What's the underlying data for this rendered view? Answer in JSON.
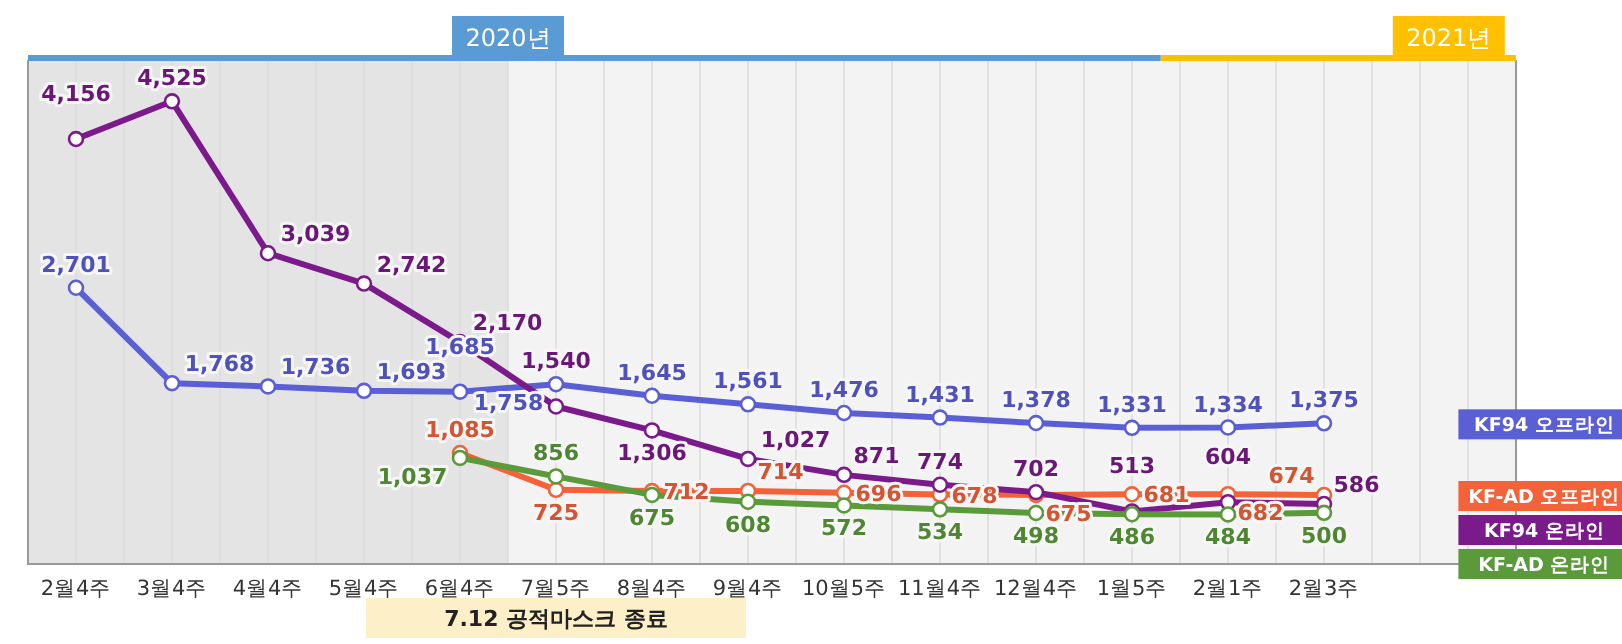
{
  "chart_data": {
    "type": "line",
    "categories": [
      "2월4주",
      "3월4주",
      "4월4주",
      "5월4주",
      "6월4주",
      "7월5주",
      "8월4주",
      "9월4주",
      "10월5주",
      "11월4주",
      "12월4주",
      "1월5주",
      "2월1주",
      "2월3주"
    ],
    "series": [
      {
        "name": "KF94 오프라인",
        "color": "#5b5fd6",
        "values": [
          2701,
          1768,
          1736,
          1693,
          1685,
          1758,
          1645,
          1561,
          1476,
          1431,
          1378,
          1331,
          1334,
          1375
        ],
        "value_labels": [
          "2,701",
          "1,768",
          "1,736",
          "1,693",
          "1,685",
          "1,758",
          "1,645",
          "1,561",
          "1,476",
          "1,431",
          "1,378",
          "1,331",
          "1,334",
          "1,375"
        ]
      },
      {
        "name": "KF-AD 오프라인",
        "color": "#f4623a",
        "values": [
          null,
          null,
          null,
          null,
          1085,
          725,
          712,
          714,
          696,
          678,
          675,
          681,
          682,
          674
        ],
        "value_labels": [
          null,
          null,
          null,
          null,
          "1,085",
          "725",
          "712",
          "714",
          "696",
          "678",
          "675",
          "681",
          "682",
          "674"
        ]
      },
      {
        "name": "KF94 온라인",
        "color": "#7b1a8a",
        "values": [
          4156,
          4525,
          3039,
          2742,
          2170,
          1540,
          1306,
          1027,
          871,
          774,
          702,
          513,
          604,
          586
        ],
        "value_labels": [
          "4,156",
          "4,525",
          "3,039",
          "2,742",
          "2,170",
          "1,540",
          "1,306",
          "1,027",
          "871",
          "774",
          "702",
          "513",
          "604",
          "586"
        ]
      },
      {
        "name": "KF-AD 온라인",
        "color": "#5a9a3a",
        "values": [
          null,
          null,
          null,
          null,
          1037,
          856,
          675,
          608,
          572,
          534,
          498,
          486,
          484,
          500
        ],
        "value_labels": [
          null,
          null,
          null,
          null,
          "1,037",
          "856",
          "675",
          "608",
          "572",
          "534",
          "498",
          "486",
          "484",
          "500"
        ]
      }
    ],
    "marker": "circle",
    "grid": "x",
    "legend": "right",
    "bands": [
      {
        "axis": "x",
        "from": "2월4주",
        "to": "6월4주",
        "color": "#e4e4e4"
      }
    ],
    "annotations": [
      "2020년",
      "2021년",
      "7.12 공적마스크 종료"
    ]
  }
}
